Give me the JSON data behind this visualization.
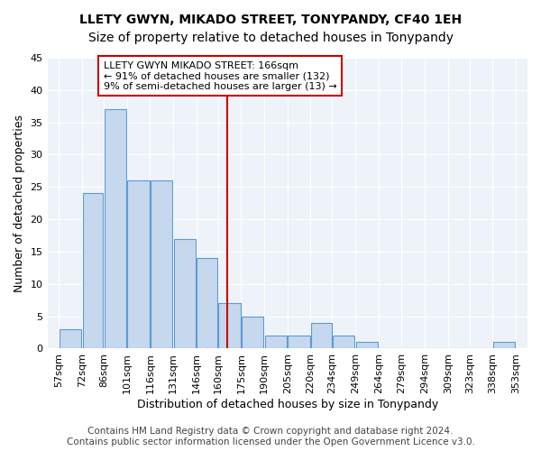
{
  "title": "LLETY GWYN, MIKADO STREET, TONYPANDY, CF40 1EH",
  "subtitle": "Size of property relative to detached houses in Tonypandy",
  "xlabel": "Distribution of detached houses by size in Tonypandy",
  "ylabel": "Number of detached properties",
  "bar_color": "#c5d8ed",
  "bar_edge_color": "#5b9bd5",
  "background_color": "#eef3f9",
  "grid_color": "#ffffff",
  "vline_x": 166,
  "vline_color": "#cc0000",
  "annotation_text": "LLETY GWYN MIKADO STREET: 166sqm\n← 91% of detached houses are smaller (132)\n9% of semi-detached houses are larger (13) →",
  "annotation_box_color": "#ffffff",
  "annotation_box_edge_color": "#cc0000",
  "bin_edges": [
    57,
    72,
    86,
    101,
    116,
    131,
    146,
    160,
    175,
    190,
    205,
    220,
    234,
    249,
    264,
    279,
    294,
    309,
    323,
    338,
    353
  ],
  "bin_labels": [
    "57sqm",
    "72sqm",
    "86sqm",
    "101sqm",
    "116sqm",
    "131sqm",
    "146sqm",
    "160sqm",
    "175sqm",
    "190sqm",
    "205sqm",
    "220sqm",
    "234sqm",
    "249sqm",
    "264sqm",
    "279sqm",
    "294sqm",
    "309sqm",
    "323sqm",
    "338sqm",
    "353sqm"
  ],
  "values": [
    3,
    24,
    37,
    26,
    26,
    17,
    14,
    7,
    5,
    2,
    2,
    4,
    2,
    1,
    0,
    0,
    0,
    0,
    0,
    1
  ],
  "ylim": [
    0,
    45
  ],
  "yticks": [
    0,
    5,
    10,
    15,
    20,
    25,
    30,
    35,
    40,
    45
  ],
  "footer_text": "Contains HM Land Registry data © Crown copyright and database right 2024.\nContains public sector information licensed under the Open Government Licence v3.0.",
  "title_fontsize": 10,
  "subtitle_fontsize": 10,
  "xlabel_fontsize": 9,
  "ylabel_fontsize": 9,
  "tick_fontsize": 8,
  "footer_fontsize": 7.5,
  "annotation_fontsize": 8
}
